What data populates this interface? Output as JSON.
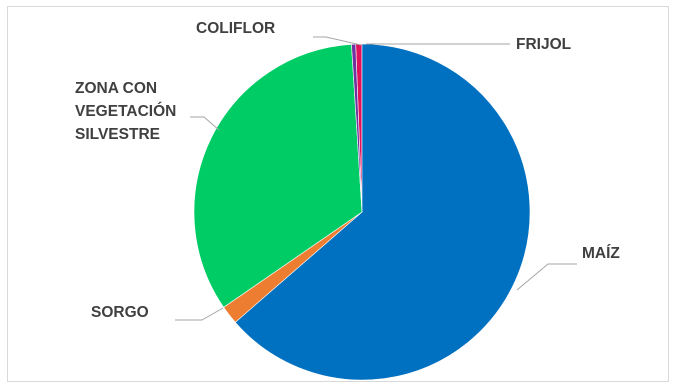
{
  "chart_data": {
    "type": "pie",
    "categories": [
      "MAÍZ",
      "SORGO",
      "ZONA CON VEGETACIÓN SILVESTRE",
      "COLIFLOR",
      "FRIJOL"
    ],
    "values": [
      63.6,
      1.8,
      33.6,
      0.4,
      0.6
    ],
    "label_lines": {
      "MAÍZ": [
        "MAÍZ"
      ],
      "SORGO": [
        "SORGO"
      ],
      "ZONA CON VEGETACIÓN SILVESTRE": [
        "ZONA CON",
        "VEGETACIÓN",
        "SILVESTRE"
      ],
      "COLIFLOR": [
        "COLIFLOR"
      ],
      "FRIJOL": [
        "FRIJOL"
      ]
    },
    "colors": [
      "#0070C0",
      "#ED7D31",
      "#00CC66",
      "#7030A0",
      "#E0105A"
    ],
    "draw_order": [
      4,
      0,
      1,
      2,
      3
    ],
    "start_angle_deg": 0,
    "direction": "clockwise",
    "title": "",
    "legend": "none",
    "data_labels": "category name with leader lines"
  }
}
